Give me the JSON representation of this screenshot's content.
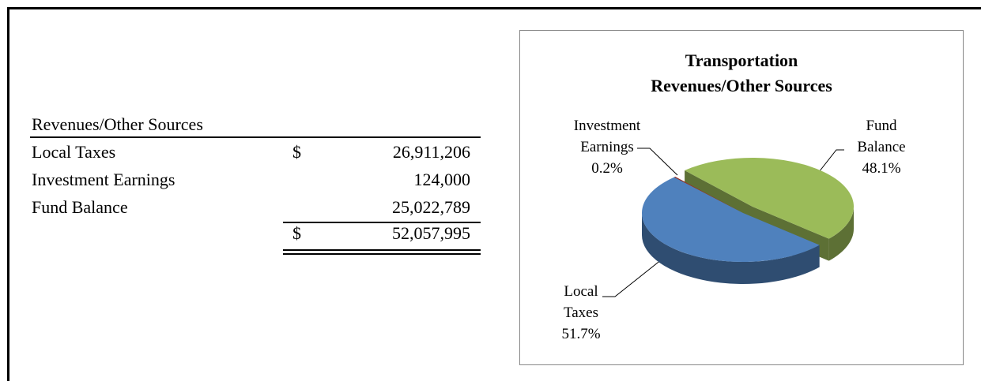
{
  "table": {
    "header": "Revenues/Other Sources",
    "rows": [
      {
        "label": "Local Taxes",
        "currency": "$",
        "amount": "26,911,206"
      },
      {
        "label": "Investment Earnings",
        "amount": "124,000"
      },
      {
        "label": "Fund Balance",
        "amount": "25,022,789"
      }
    ],
    "total": {
      "currency": "$",
      "amount": "52,057,995"
    }
  },
  "chart_data": {
    "type": "pie",
    "title": [
      "Transportation",
      "Revenues/Other Sources"
    ],
    "categories": [
      "Local Taxes",
      "Investment Earnings",
      "Fund Balance"
    ],
    "values": [
      51.7,
      0.2,
      48.1
    ],
    "value_labels": [
      "51.7%",
      "0.2%",
      "48.1%"
    ],
    "colors": [
      "#4f81bd",
      "#9a2f24",
      "#9bbb59"
    ]
  }
}
